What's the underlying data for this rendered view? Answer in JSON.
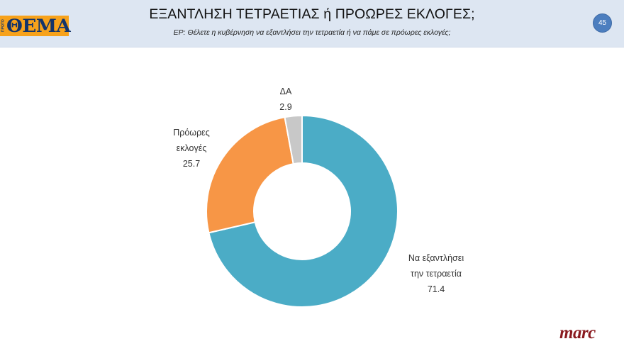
{
  "header": {
    "logo_side_text": "ΠΡΩΤΟ",
    "logo_text": "ΘΕΜΑ",
    "title": "ΕΞΑΝΤΛΗΣΗ ΤΕΤΡΑΕΤΙΑΣ ή ΠΡΟΩΡΕΣ ΕΚΛΟΓΕΣ;",
    "subtitle": "ΕΡ: Θέλετε η κυβέρνηση να εξαντλήσει την τετραετία ή να πάμε σε πρόωρες εκλογές;",
    "page_number": "45"
  },
  "footer": {
    "brand": "marc"
  },
  "colors": {
    "header_bg": "#dde6f2",
    "logo_bg": "#f7a21b",
    "logo_text": "#14346a",
    "badge": "#4c7ebf",
    "brand": "#8a1a1f"
  },
  "chart_data": {
    "type": "pie",
    "variant": "donut",
    "title": "ΕΞΑΝΤΛΗΣΗ ΤΕΤΡΑΕΤΙΑΣ ή ΠΡΟΩΡΕΣ ΕΚΛΟΓΕΣ;",
    "subtitle": "ΕΡ: Θέλετε η κυβέρνηση να εξαντλήσει την τετραετία ή να πάμε σε πρόωρες εκλογές;",
    "categories": [
      "Να εξαντλήσει την τετραετία",
      "Πρόωρες εκλογές",
      "ΔΑ"
    ],
    "values": [
      71.4,
      25.7,
      2.9
    ],
    "colors": [
      "#4bacc6",
      "#f79646",
      "#c8c8c8"
    ],
    "start_angle": "12 o'clock, clockwise",
    "legend": "none (data labels outside)",
    "labels": [
      {
        "lines": [
          "Να εξαντλήσει",
          "την τετραετία"
        ],
        "value": "71.4"
      },
      {
        "lines": [
          "Πρόωρες",
          "εκλογές"
        ],
        "value": "25.7"
      },
      {
        "lines": [
          "ΔΑ"
        ],
        "value": "2.9"
      }
    ]
  }
}
